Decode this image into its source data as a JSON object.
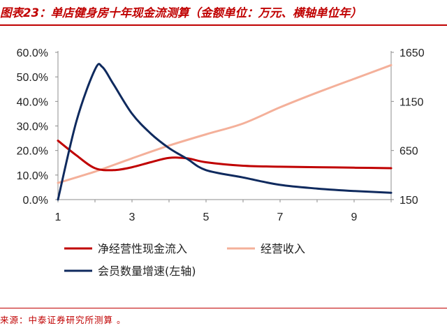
{
  "title": "图表23：单店健身房十年现金流测算（金额单位：万元、横轴单位年）",
  "source": "来源：中泰证券研究所测算  。",
  "chart_data": {
    "type": "line",
    "x_ticks": [
      "1",
      "3",
      "5",
      "7",
      "9"
    ],
    "xlim": [
      1,
      10
    ],
    "left_ticks": [
      "0.0%",
      "10.0%",
      "20.0%",
      "30.0%",
      "40.0%",
      "50.0%",
      "60.0%"
    ],
    "left_ylim": [
      0,
      60
    ],
    "right_ticks": [
      "150",
      "650",
      "1150",
      "1650"
    ],
    "right_ylim": [
      150,
      1650
    ],
    "series": [
      {
        "name": "净经营性现金流入",
        "axis": "right",
        "color": "#c00000",
        "x": [
          1,
          1.5,
          2,
          2.5,
          3,
          3.5,
          4,
          4.5,
          5,
          6,
          7,
          8,
          9,
          10
        ],
        "y": [
          750,
          600,
          470,
          450,
          480,
          530,
          575,
          570,
          530,
          495,
          485,
          480,
          475,
          470
        ]
      },
      {
        "name": "经营收入",
        "axis": "right",
        "color": "#f4b09a",
        "x": [
          1,
          2,
          3,
          4,
          5,
          6,
          7,
          8,
          9,
          10
        ],
        "y": [
          320,
          435,
          570,
          700,
          815,
          925,
          1090,
          1240,
          1380,
          1520
        ]
      },
      {
        "name": "会员数量增速(左轴)",
        "axis": "left",
        "color": "#0f2a5e",
        "x": [
          1,
          1.5,
          2,
          2.2,
          2.5,
          3,
          3.5,
          4,
          4.5,
          5,
          6,
          7,
          8,
          9,
          10
        ],
        "y": [
          0,
          32,
          53,
          54,
          47,
          35,
          27,
          21,
          16.5,
          12,
          9,
          6,
          4.5,
          3.5,
          2.8
        ]
      }
    ]
  }
}
